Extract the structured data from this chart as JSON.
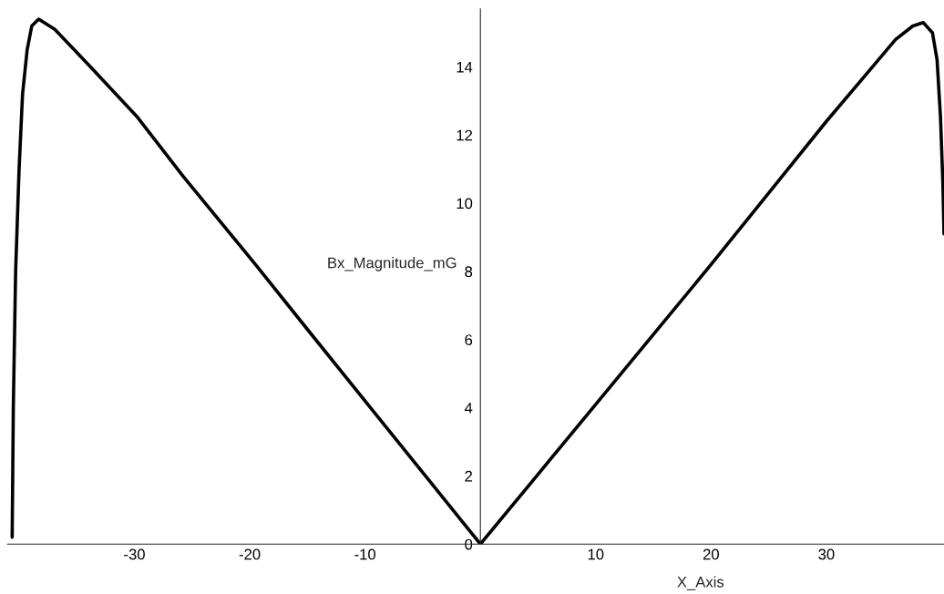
{
  "chart_data": {
    "type": "line",
    "xlabel": "X_Axis",
    "ylabel": "Bx_Magnitude_mG",
    "series": [
      {
        "color": "#000000",
        "x": [
          -40.6,
          -40.5,
          -40.3,
          -40.0,
          -39.7,
          -39.3,
          -38.9,
          -38.3,
          -36.9,
          -33.8,
          -29.8,
          -25.8,
          -19.5,
          -15.0,
          -10.0,
          -5.0,
          0,
          5.0,
          10.0,
          15.0,
          20.0,
          25.0,
          30.0,
          34.0,
          36.0,
          37.5,
          38.4,
          39.2,
          39.6,
          39.9,
          40.1,
          40.2
        ],
        "values": [
          0.2,
          4.0,
          8.0,
          11.0,
          13.2,
          14.5,
          15.2,
          15.4,
          15.1,
          14.0,
          12.55,
          10.8,
          8.2,
          6.3,
          4.2,
          2.1,
          0,
          2.05,
          4.1,
          6.15,
          8.2,
          10.3,
          12.4,
          14.0,
          14.8,
          15.2,
          15.3,
          15.0,
          14.2,
          12.5,
          10.6,
          9.1
        ]
      }
    ],
    "xlim": [
      -41,
      40.2
    ],
    "ylim": [
      0,
      15.7
    ],
    "xticks": [
      -30,
      -20,
      -10,
      10,
      20,
      30
    ],
    "yticks": [
      0,
      2,
      4,
      6,
      8,
      10,
      12,
      14
    ],
    "grid": false,
    "marker": "none",
    "line_style": "solid"
  }
}
